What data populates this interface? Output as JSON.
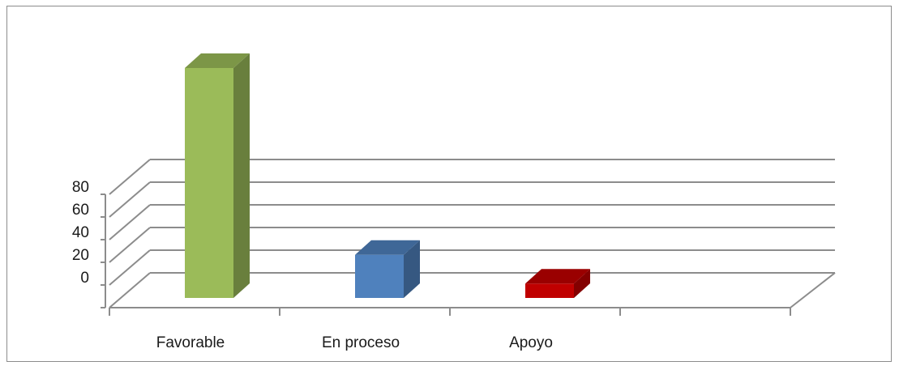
{
  "chart_data": {
    "type": "bar",
    "categories": [
      "Favorable",
      "En proceso",
      "Apoyo",
      ""
    ],
    "values": [
      80,
      15,
      5,
      null
    ],
    "colors": [
      "#9bbb59",
      "#4f81bd",
      "#c00000"
    ],
    "yticks": [
      0,
      20,
      40,
      60,
      80
    ],
    "ylim": [
      0,
      100
    ],
    "three_d": true,
    "grid": true,
    "legend": "none"
  }
}
